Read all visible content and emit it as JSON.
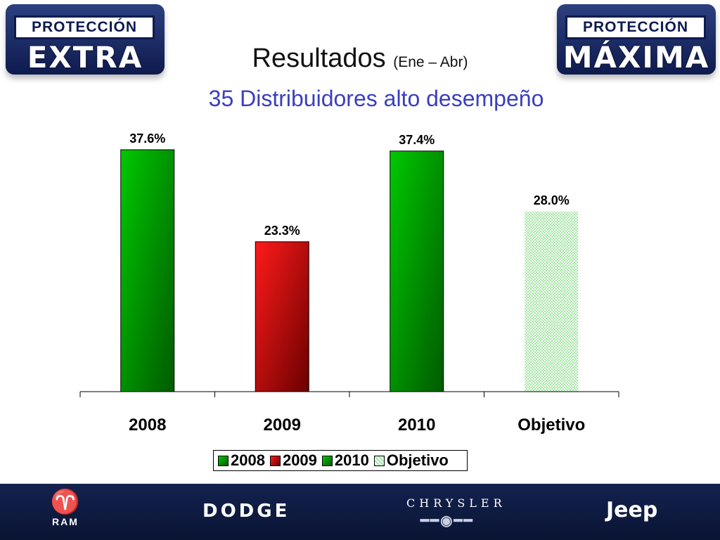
{
  "header": {
    "left_badge": {
      "line1": "PROTECCIÓN",
      "line2": "EXTRA"
    },
    "right_badge": {
      "line1": "PROTECCIÓN",
      "line2": "MÁXIMA"
    },
    "title": "Resultados",
    "title_suffix": "(Ene – Abr)",
    "subtitle": "35 Distribuidores alto desempeño"
  },
  "chart_data": {
    "type": "bar",
    "categories": [
      "2008",
      "2009",
      "2010",
      "Objetivo"
    ],
    "values": [
      37.6,
      23.3,
      37.4,
      28.0
    ],
    "value_labels": [
      "37.6%",
      "23.3%",
      "37.4%",
      "28.0%"
    ],
    "ylim": [
      0,
      40
    ],
    "grid": false,
    "legend": {
      "position": "bottom",
      "entries": [
        "2008",
        "2009",
        "2010",
        "Objetivo"
      ]
    },
    "colors": {
      "2008": "#00b400",
      "2009": "#e00000",
      "2010": "#00b400",
      "Objetivo": "#b4f0b4"
    }
  },
  "footer": {
    "brands": [
      "RAM",
      "DODGE",
      "CHRYSLER",
      "Jeep"
    ]
  }
}
